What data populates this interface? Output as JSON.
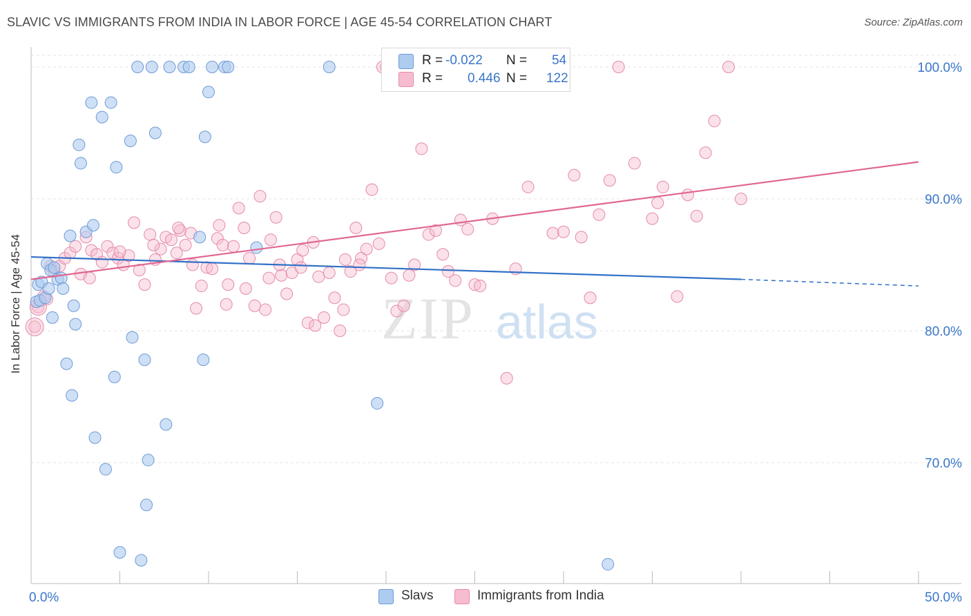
{
  "title": "SLAVIC VS IMMIGRANTS FROM INDIA IN LABOR FORCE | AGE 45-54 CORRELATION CHART",
  "source": "Source: ZipAtlas.com",
  "watermark": {
    "zip": "ZIP",
    "atlas": "atlas"
  },
  "legend": {
    "r_label": "R =",
    "n_label": "N =",
    "series": [
      {
        "name": "Slavs",
        "r": "-0.022",
        "n": "54",
        "color": "#aecbf0",
        "edge": "#6e9ad6",
        "line": "#2f6fc7"
      },
      {
        "name": "Immigrants from India",
        "r": "0.446",
        "n": "122",
        "color": "#f7bcd0",
        "edge": "#e48aa8",
        "line": "#e06690"
      }
    ]
  },
  "chart_data": {
    "type": "scatter",
    "title": "SLAVIC VS IMMIGRANTS FROM INDIA IN LABOR FORCE | AGE 45-54 CORRELATION CHART",
    "xlabel": "",
    "ylabel": "In Labor Force | Age 45-54",
    "xlim": [
      0,
      50
    ],
    "ylim": [
      61.5,
      102
    ],
    "x_tick_labels": [
      "0.0%",
      "50.0%"
    ],
    "y_ticks": [
      70,
      80,
      90,
      100
    ],
    "y_tick_labels": [
      "70.0%",
      "80.0%",
      "90.0%",
      "100.0%"
    ],
    "series": [
      {
        "name": "Slavs",
        "trend": {
          "x0": 0,
          "y0": 85.6,
          "x1": 40,
          "y1": 83.9,
          "dash_to": 50,
          "dash_y": 83.4
        },
        "points": [
          [
            0.3,
            82.2
          ],
          [
            0.4,
            83.5
          ],
          [
            0.5,
            82.3
          ],
          [
            0.6,
            83.7
          ],
          [
            0.8,
            82.5
          ],
          [
            0.9,
            85.1
          ],
          [
            1.0,
            83.2
          ],
          [
            1.1,
            84.6
          ],
          [
            1.2,
            81.0
          ],
          [
            1.3,
            84.8
          ],
          [
            1.5,
            83.9
          ],
          [
            1.7,
            84.0
          ],
          [
            1.8,
            83.2
          ],
          [
            2.0,
            77.5
          ],
          [
            2.2,
            87.2
          ],
          [
            2.3,
            75.1
          ],
          [
            2.4,
            81.9
          ],
          [
            2.5,
            80.5
          ],
          [
            2.7,
            94.1
          ],
          [
            2.8,
            92.7
          ],
          [
            3.1,
            87.5
          ],
          [
            3.5,
            88.0
          ],
          [
            3.4,
            97.3
          ],
          [
            3.6,
            71.9
          ],
          [
            4.0,
            96.2
          ],
          [
            4.2,
            69.5
          ],
          [
            4.5,
            97.3
          ],
          [
            4.7,
            76.5
          ],
          [
            4.8,
            92.4
          ],
          [
            5.0,
            63.2
          ],
          [
            5.6,
            94.4
          ],
          [
            5.7,
            79.5
          ],
          [
            6.0,
            100.0
          ],
          [
            6.2,
            62.6
          ],
          [
            6.4,
            77.8
          ],
          [
            6.5,
            66.8
          ],
          [
            6.6,
            70.2
          ],
          [
            6.8,
            100.0
          ],
          [
            7.0,
            95.0
          ],
          [
            7.6,
            72.9
          ],
          [
            7.8,
            100.0
          ],
          [
            8.6,
            100.0
          ],
          [
            8.9,
            100.0
          ],
          [
            9.5,
            87.1
          ],
          [
            9.7,
            77.8
          ],
          [
            9.8,
            94.7
          ],
          [
            10.0,
            98.1
          ],
          [
            10.2,
            100.0
          ],
          [
            10.9,
            100.0
          ],
          [
            11.1,
            100.0
          ],
          [
            12.7,
            86.3
          ],
          [
            16.8,
            100.0
          ],
          [
            19.5,
            74.5
          ],
          [
            32.5,
            62.3
          ]
        ]
      },
      {
        "name": "Immigrants from India",
        "trend": {
          "x0": 0,
          "y0": 83.9,
          "x1": 50,
          "y1": 92.8
        },
        "points": [
          [
            0.2,
            80.3
          ],
          [
            0.4,
            81.8
          ],
          [
            0.7,
            82.6
          ],
          [
            0.9,
            82.4
          ],
          [
            1.1,
            84.9
          ],
          [
            1.3,
            84.5
          ],
          [
            1.6,
            84.9
          ],
          [
            1.9,
            85.5
          ],
          [
            2.2,
            85.9
          ],
          [
            2.5,
            86.4
          ],
          [
            2.8,
            84.3
          ],
          [
            3.1,
            87.1
          ],
          [
            3.4,
            86.1
          ],
          [
            3.7,
            85.8
          ],
          [
            4.0,
            85.2
          ],
          [
            4.3,
            86.4
          ],
          [
            4.6,
            85.9
          ],
          [
            4.9,
            85.5
          ],
          [
            5.2,
            85.0
          ],
          [
            5.5,
            85.7
          ],
          [
            5.8,
            88.2
          ],
          [
            6.1,
            84.6
          ],
          [
            6.4,
            83.5
          ],
          [
            6.7,
            87.3
          ],
          [
            7.0,
            85.4
          ],
          [
            7.3,
            86.2
          ],
          [
            7.6,
            87.1
          ],
          [
            7.9,
            86.9
          ],
          [
            8.2,
            85.9
          ],
          [
            8.4,
            87.6
          ],
          [
            8.7,
            86.5
          ],
          [
            9.0,
            87.4
          ],
          [
            9.3,
            81.7
          ],
          [
            9.6,
            83.4
          ],
          [
            9.9,
            84.8
          ],
          [
            10.2,
            84.7
          ],
          [
            10.5,
            87.0
          ],
          [
            10.8,
            86.5
          ],
          [
            11.1,
            83.5
          ],
          [
            11.4,
            86.4
          ],
          [
            11.7,
            89.3
          ],
          [
            12.0,
            87.8
          ],
          [
            12.3,
            85.5
          ],
          [
            12.6,
            81.9
          ],
          [
            12.9,
            90.2
          ],
          [
            13.2,
            81.6
          ],
          [
            13.5,
            86.9
          ],
          [
            13.8,
            88.6
          ],
          [
            14.1,
            84.2
          ],
          [
            14.4,
            82.8
          ],
          [
            14.7,
            84.4
          ],
          [
            15.0,
            85.4
          ],
          [
            15.3,
            86.1
          ],
          [
            15.6,
            80.6
          ],
          [
            15.9,
            86.7
          ],
          [
            16.2,
            84.1
          ],
          [
            16.5,
            81.0
          ],
          [
            16.8,
            84.4
          ],
          [
            17.1,
            82.5
          ],
          [
            17.4,
            80.0
          ],
          [
            17.7,
            85.4
          ],
          [
            18.0,
            84.5
          ],
          [
            18.3,
            87.8
          ],
          [
            18.6,
            85.5
          ],
          [
            18.9,
            86.2
          ],
          [
            19.2,
            90.7
          ],
          [
            19.6,
            86.6
          ],
          [
            20.0,
            100.0
          ],
          [
            20.3,
            84.0
          ],
          [
            20.6,
            81.5
          ],
          [
            21.0,
            81.9
          ],
          [
            21.3,
            84.2
          ],
          [
            21.6,
            85.0
          ],
          [
            22.0,
            93.8
          ],
          [
            22.4,
            87.3
          ],
          [
            22.8,
            87.6
          ],
          [
            23.2,
            85.8
          ],
          [
            23.5,
            84.5
          ],
          [
            23.9,
            83.8
          ],
          [
            24.2,
            88.4
          ],
          [
            24.6,
            87.7
          ],
          [
            25.0,
            83.5
          ],
          [
            25.3,
            83.4
          ],
          [
            26.0,
            88.5
          ],
          [
            26.8,
            76.4
          ],
          [
            27.3,
            84.7
          ],
          [
            28.0,
            90.9
          ],
          [
            28.5,
            100.0
          ],
          [
            29.4,
            87.4
          ],
          [
            30.0,
            87.5
          ],
          [
            30.6,
            91.8
          ],
          [
            31.0,
            87.1
          ],
          [
            31.5,
            82.5
          ],
          [
            32.0,
            88.8
          ],
          [
            32.6,
            91.4
          ],
          [
            33.1,
            100.0
          ],
          [
            34.0,
            92.7
          ],
          [
            35.0,
            88.5
          ],
          [
            35.3,
            89.7
          ],
          [
            35.6,
            90.9
          ],
          [
            36.4,
            82.6
          ],
          [
            37.0,
            90.3
          ],
          [
            37.5,
            88.7
          ],
          [
            38.0,
            93.5
          ],
          [
            38.5,
            95.9
          ],
          [
            39.3,
            100.0
          ],
          [
            40.0,
            90.0
          ],
          [
            8.3,
            87.8
          ],
          [
            11.0,
            82.0
          ],
          [
            14.0,
            85.0
          ],
          [
            16.0,
            80.4
          ],
          [
            18.5,
            85.0
          ],
          [
            19.8,
            100.0
          ],
          [
            3.3,
            84.0
          ],
          [
            5.0,
            86.0
          ],
          [
            6.9,
            86.5
          ],
          [
            9.1,
            85.0
          ],
          [
            10.6,
            88.0
          ],
          [
            12.1,
            83.2
          ],
          [
            13.4,
            84.0
          ],
          [
            15.2,
            84.8
          ],
          [
            17.6,
            81.6
          ]
        ]
      }
    ]
  }
}
